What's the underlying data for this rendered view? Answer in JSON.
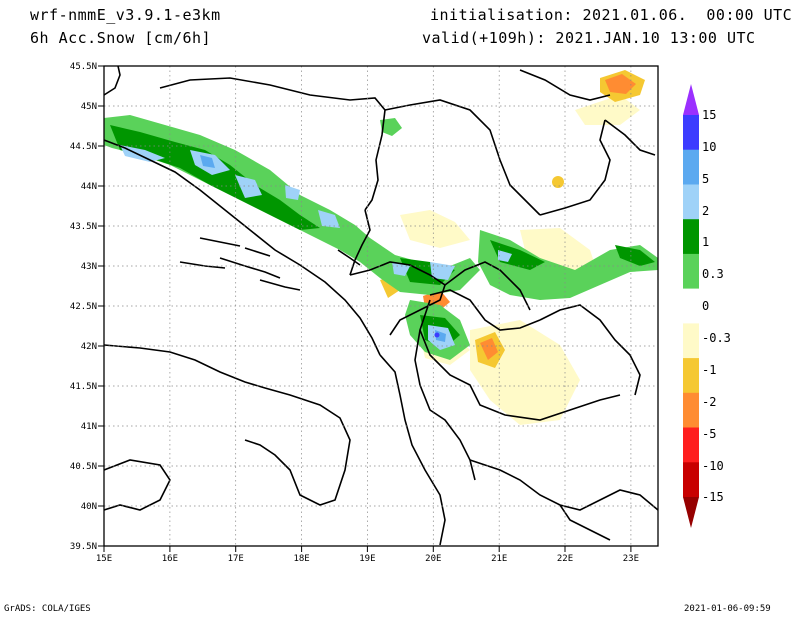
{
  "header": {
    "model": "wrf-nmmE_v3.9.1-e3km",
    "field": "6h Acc.Snow [cm/6h]",
    "init": "initialisation: 2021.01.06.  00:00 UTC",
    "valid": "valid(+109h): 2021.JAN.10 13:00 UTC"
  },
  "map": {
    "lat_labels": [
      "45.5N",
      "45N",
      "44.5N",
      "44N",
      "43.5N",
      "43N",
      "42.5N",
      "42N",
      "41.5N",
      "41N",
      "40.5N",
      "40N",
      "39.5N"
    ],
    "lon_labels": [
      "15E",
      "16E",
      "17E",
      "18E",
      "19E",
      "20E",
      "21E",
      "22E",
      "23E"
    ],
    "lat_range": [
      39.5,
      45.5
    ],
    "lon_range": [
      15,
      23.3
    ]
  },
  "colorbar": {
    "levels": [
      "15",
      "10",
      "5",
      "2",
      "1",
      "0.3",
      "0",
      "-0.3",
      "-1",
      "-2",
      "-5",
      "-10",
      "-15"
    ],
    "colors": [
      "#9b30ff",
      "#3c3cff",
      "#5ba9f0",
      "#9fd2f8",
      "#009600",
      "#5ad25a",
      "#ffffff",
      "#fffac8",
      "#f5c832",
      "#ff8c32",
      "#ff1e1e",
      "#c80000",
      "#960000"
    ]
  },
  "footer": {
    "left": "GrADS: COLA/IGES",
    "right": "2021-01-06-09:59"
  }
}
